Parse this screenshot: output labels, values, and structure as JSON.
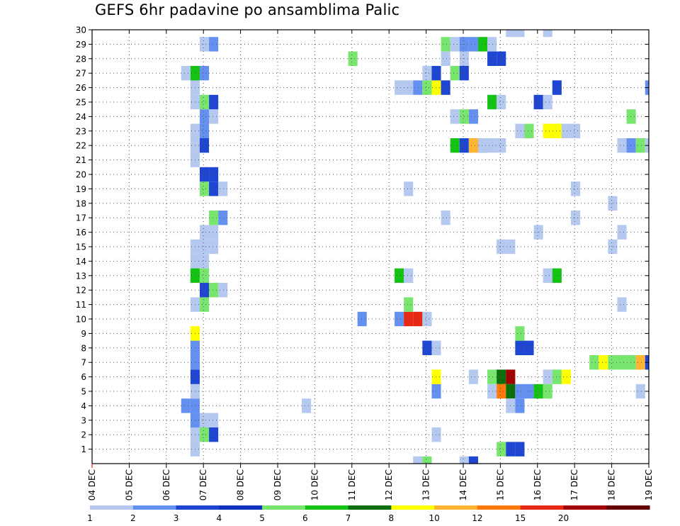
{
  "chart_data": {
    "type": "heatmap",
    "title": "GEFS 6hr padavine po ansamblima Palic",
    "xlabel": "",
    "ylabel": "",
    "x_ticks": [
      "04 DEC",
      "05 DEC",
      "06 DEC",
      "07 DEC",
      "08 DEC",
      "09 DEC",
      "10 DEC",
      "11 DEC",
      "12 DEC",
      "13 DEC",
      "14 DEC",
      "15 DEC",
      "16 DEC",
      "17 DEC",
      "18 DEC",
      "19 DEC"
    ],
    "y_ticks": [
      "1",
      "2",
      "3",
      "4",
      "5",
      "6",
      "7",
      "8",
      "9",
      "10",
      "11",
      "12",
      "13",
      "14",
      "15",
      "16",
      "17",
      "18",
      "19",
      "20",
      "21",
      "22",
      "23",
      "24",
      "25",
      "26",
      "27",
      "28",
      "29",
      "30"
    ],
    "x_steps_per_day": 4,
    "grid": true,
    "legend_position": "bottom",
    "legend": {
      "labels": [
        "1",
        "2",
        "3",
        "4",
        "5",
        "6",
        "7",
        "8",
        "10",
        "12",
        "15",
        "20"
      ],
      "colors": [
        "#b4c8f0",
        "#6490f0",
        "#1e46d2",
        "#0a32be",
        "#78e66e",
        "#14c314",
        "#0a6e0a",
        "#ffff00",
        "#ffb432",
        "#ff780a",
        "#e62814",
        "#a00000",
        "#640000"
      ]
    },
    "cells": [
      [
        "#b4c8f0",
        2.65,
        1
      ],
      [
        "#b4c8f0",
        2.65,
        2
      ],
      [
        "#6490f0",
        2.65,
        3
      ],
      [
        "#6490f0",
        2.4,
        4
      ],
      [
        "#6490f0",
        2.65,
        4
      ],
      [
        "#b4c8f0",
        2.65,
        5
      ],
      [
        "#1e46d2",
        2.65,
        6
      ],
      [
        "#6490f0",
        2.65,
        7
      ],
      [
        "#6490f0",
        2.65,
        8
      ],
      [
        "#ffff00",
        2.65,
        9
      ],
      [
        "#b4c8f0",
        2.65,
        11
      ],
      [
        "#b4c8f0",
        2.65,
        14
      ],
      [
        "#b4c8f0",
        2.65,
        15
      ],
      [
        "#14c314",
        2.65,
        13
      ],
      [
        "#b4c8f0",
        2.65,
        21
      ],
      [
        "#b4c8f0",
        2.65,
        22
      ],
      [
        "#b4c8f0",
        2.65,
        23
      ],
      [
        "#b4c8f0",
        2.65,
        25
      ],
      [
        "#b4c8f0",
        2.65,
        26
      ],
      [
        "#14c314",
        2.65,
        27
      ],
      [
        "#b4c8f0",
        2.4,
        27
      ],
      [
        "#78e66e",
        2.9,
        2
      ],
      [
        "#b4c8f0",
        2.9,
        3
      ],
      [
        "#78e66e",
        2.9,
        11
      ],
      [
        "#1e46d2",
        2.9,
        12
      ],
      [
        "#78e66e",
        2.9,
        13
      ],
      [
        "#b4c8f0",
        2.9,
        14
      ],
      [
        "#b4c8f0",
        2.9,
        15
      ],
      [
        "#b4c8f0",
        2.9,
        16
      ],
      [
        "#78e66e",
        2.9,
        19
      ],
      [
        "#1e46d2",
        2.9,
        20
      ],
      [
        "#1e46d2",
        2.9,
        22
      ],
      [
        "#6490f0",
        2.9,
        23
      ],
      [
        "#6490f0",
        2.9,
        24
      ],
      [
        "#78e66e",
        2.9,
        25
      ],
      [
        "#6490f0",
        2.9,
        27
      ],
      [
        "#b4c8f0",
        2.9,
        29
      ],
      [
        "#1e46d2",
        3.15,
        2
      ],
      [
        "#b4c8f0",
        3.15,
        3
      ],
      [
        "#78e66e",
        3.15,
        12
      ],
      [
        "#b4c8f0",
        3.15,
        15
      ],
      [
        "#b4c8f0",
        3.15,
        16
      ],
      [
        "#78e66e",
        3.15,
        17
      ],
      [
        "#1e46d2",
        3.15,
        19
      ],
      [
        "#1e46d2",
        3.15,
        20
      ],
      [
        "#b4c8f0",
        3.15,
        24
      ],
      [
        "#1e46d2",
        3.15,
        25
      ],
      [
        "#6490f0",
        3.15,
        29
      ],
      [
        "#b4c8f0",
        3.4,
        12
      ],
      [
        "#6490f0",
        3.4,
        17
      ],
      [
        "#b4c8f0",
        3.4,
        19
      ],
      [
        "#b4c8f0",
        5.65,
        4
      ],
      [
        "#78e66e",
        6.9,
        28
      ],
      [
        "#6490f0",
        7.15,
        10
      ],
      [
        "#6490f0",
        8.15,
        10
      ],
      [
        "#14c314",
        8.15,
        13
      ],
      [
        "#b4c8f0",
        8.15,
        26
      ],
      [
        "#e62814",
        8.4,
        10
      ],
      [
        "#78e66e",
        8.4,
        11
      ],
      [
        "#b4c8f0",
        8.4,
        13
      ],
      [
        "#b4c8f0",
        8.4,
        19
      ],
      [
        "#b4c8f0",
        8.4,
        26
      ],
      [
        "#e62814",
        8.65,
        10
      ],
      [
        "#b4c8f0",
        8.65,
        0
      ],
      [
        "#6490f0",
        8.65,
        26
      ],
      [
        "#b4c8f0",
        8.9,
        10
      ],
      [
        "#78e66e",
        8.9,
        0
      ],
      [
        "#1e46d2",
        8.9,
        8
      ],
      [
        "#78e66e",
        8.9,
        26
      ],
      [
        "#b4c8f0",
        8.9,
        27
      ],
      [
        "#b4c8f0",
        9.15,
        2
      ],
      [
        "#b4c8f0",
        9.15,
        8
      ],
      [
        "#6490f0",
        9.15,
        5
      ],
      [
        "#ffff00",
        9.15,
        6
      ],
      [
        "#ffff00",
        9.15,
        26
      ],
      [
        "#1e46d2",
        9.15,
        27
      ],
      [
        "#b4c8f0",
        9.4,
        17
      ],
      [
        "#1e46d2",
        9.4,
        26
      ],
      [
        "#78e66e",
        9.4,
        29
      ],
      [
        "#b4c8f0",
        9.4,
        28
      ],
      [
        "#14c314",
        9.65,
        22
      ],
      [
        "#b4c8f0",
        9.65,
        24
      ],
      [
        "#78e66e",
        9.65,
        27
      ],
      [
        "#b4c8f0",
        9.65,
        29
      ],
      [
        "#1e46d2",
        9.9,
        22
      ],
      [
        "#78e66e",
        9.9,
        24
      ],
      [
        "#1e46d2",
        9.9,
        27
      ],
      [
        "#6490f0",
        9.9,
        29
      ],
      [
        "#b4c8f0",
        9.9,
        28
      ],
      [
        "#b4c8f0",
        9.9,
        0
      ],
      [
        "#ffb432",
        10.15,
        22
      ],
      [
        "#6490f0",
        10.15,
        24
      ],
      [
        "#6490f0",
        10.15,
        29
      ],
      [
        "#b4c8f0",
        10.15,
        6
      ],
      [
        "#1e46d2",
        10.15,
        0
      ],
      [
        "#14c314",
        10.4,
        29
      ],
      [
        "#0a6e0a",
        10.4,
        22
      ],
      [
        "#b4c8f0",
        10.4,
        22
      ],
      [
        "#b4c8f0",
        10.65,
        29
      ],
      [
        "#b4c8f0",
        10.65,
        22
      ],
      [
        "#78e66e",
        10.65,
        6
      ],
      [
        "#b4c8f0",
        10.65,
        5
      ],
      [
        "#14c314",
        10.65,
        25
      ],
      [
        "#1e46d2",
        10.65,
        28
      ],
      [
        "#0a6e0a",
        10.9,
        6
      ],
      [
        "#ff780a",
        10.9,
        5
      ],
      [
        "#b4c8f0",
        10.9,
        15
      ],
      [
        "#78e66e",
        10.9,
        1
      ],
      [
        "#b4c8f0",
        10.9,
        22
      ],
      [
        "#b4c8f0",
        10.9,
        25
      ],
      [
        "#1e46d2",
        10.9,
        28
      ],
      [
        "#a00000",
        11.15,
        6
      ],
      [
        "#0a6e0a",
        11.15,
        5
      ],
      [
        "#b4c8f0",
        11.15,
        15
      ],
      [
        "#1e46d2",
        11.15,
        1
      ],
      [
        "#b4c8f0",
        11.15,
        4
      ],
      [
        "#b4c8f0",
        11.15,
        30
      ],
      [
        "#6490f0",
        11.4,
        5
      ],
      [
        "#1e46d2",
        11.4,
        8
      ],
      [
        "#78e66e",
        11.4,
        9
      ],
      [
        "#6490f0",
        11.4,
        4
      ],
      [
        "#1e46d2",
        11.4,
        1
      ],
      [
        "#b4c8f0",
        11.4,
        23
      ],
      [
        "#b4c8f0",
        11.4,
        30
      ],
      [
        "#6490f0",
        11.65,
        5
      ],
      [
        "#1e46d2",
        11.65,
        8
      ],
      [
        "#78e66e",
        11.65,
        23
      ],
      [
        "#14c314",
        11.9,
        5
      ],
      [
        "#1e46d2",
        11.9,
        25
      ],
      [
        "#b4c8f0",
        11.9,
        16
      ],
      [
        "#b4c8f0",
        12.15,
        6
      ],
      [
        "#78e66e",
        12.15,
        5
      ],
      [
        "#b4c8f0",
        12.15,
        13
      ],
      [
        "#b4c8f0",
        12.15,
        25
      ],
      [
        "#ffff00",
        12.15,
        23
      ],
      [
        "#b4c8f0",
        12.15,
        30
      ],
      [
        "#78e66e",
        12.4,
        6
      ],
      [
        "#14c314",
        12.4,
        13
      ],
      [
        "#1e46d2",
        12.4,
        26
      ],
      [
        "#78e66e",
        12.4,
        23
      ],
      [
        "#ffff00",
        12.4,
        23
      ],
      [
        "#ffff00",
        12.65,
        6
      ],
      [
        "#b4c8f0",
        12.65,
        23
      ],
      [
        "#b4c8f0",
        12.9,
        23
      ],
      [
        "#b4c8f0",
        12.9,
        19
      ],
      [
        "#b4c8f0",
        12.9,
        17
      ],
      [
        "#78e66e",
        13.4,
        7
      ],
      [
        "#ffff00",
        13.65,
        7
      ],
      [
        "#78e66e",
        13.9,
        7
      ],
      [
        "#b4c8f0",
        13.9,
        15
      ],
      [
        "#b4c8f0",
        13.9,
        18
      ],
      [
        "#78e66e",
        14.15,
        7
      ],
      [
        "#b4c8f0",
        14.15,
        11
      ],
      [
        "#b4c8f0",
        14.15,
        16
      ],
      [
        "#b4c8f0",
        14.15,
        22
      ],
      [
        "#78e66e",
        14.4,
        7
      ],
      [
        "#6490f0",
        14.4,
        22
      ],
      [
        "#78e66e",
        14.4,
        24
      ],
      [
        "#ffb432",
        14.65,
        7
      ],
      [
        "#78e66e",
        14.65,
        22
      ],
      [
        "#b4c8f0",
        14.65,
        5
      ],
      [
        "#1e46d2",
        14.9,
        7
      ],
      [
        "#b4c8f0",
        14.9,
        22
      ],
      [
        "#6490f0",
        14.9,
        26
      ]
    ]
  },
  "title": "GEFS 6hr padavine po ansamblima Palic"
}
